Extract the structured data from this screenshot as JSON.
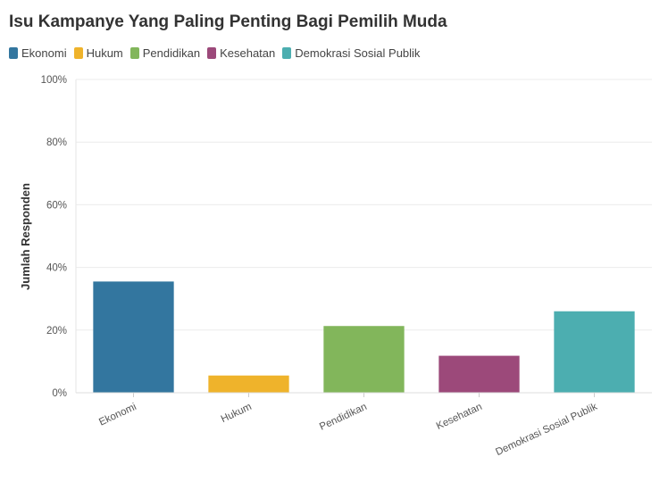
{
  "chart_data": {
    "type": "bar",
    "title": "Isu Kampanye Yang Paling Penting Bagi Pemilih Muda",
    "xlabel": "",
    "ylabel": "Jumlah Responden",
    "categories": [
      "Ekonomi",
      "Hukum",
      "Pendidikan",
      "Kesehatan",
      "Demokrasi Sosial Publik"
    ],
    "values": [
      35.5,
      5.5,
      21.3,
      11.8,
      26.0
    ],
    "colors": [
      "#33769f",
      "#efb32b",
      "#82b65b",
      "#9c497a",
      "#4caeb0"
    ],
    "ylim": [
      0,
      100
    ],
    "yticks": [
      0,
      20,
      40,
      60,
      80,
      100
    ],
    "ytick_labels": [
      "0%",
      "20%",
      "40%",
      "60%",
      "80%",
      "100%"
    ],
    "grid": true,
    "legend": {
      "placement": "top-left",
      "entries": [
        "Ekonomi",
        "Hukum",
        "Pendidikan",
        "Kesehatan",
        "Demokrasi Sosial Publik"
      ]
    }
  }
}
